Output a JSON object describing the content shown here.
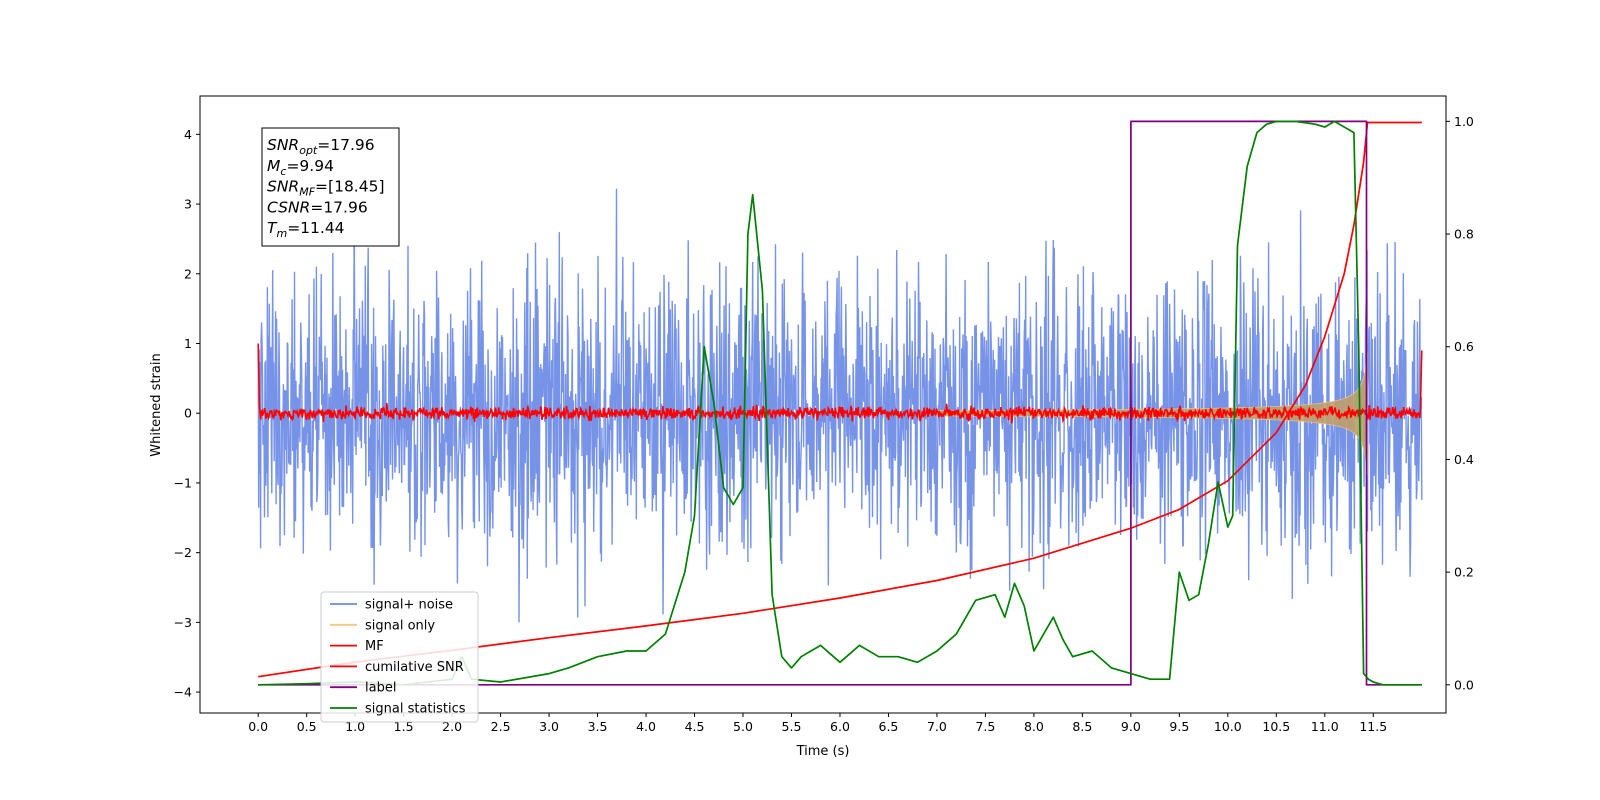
{
  "chart_data": {
    "type": "line",
    "title": "",
    "xlabel": "Time (s)",
    "ylabel": "Whitened strain",
    "y2label": "",
    "xlim": [
      -0.6,
      12.25
    ],
    "ylim": [
      -4.3,
      4.55
    ],
    "y2lim": [
      -0.05,
      1.045
    ],
    "xticks": [
      "0.0",
      "0.5",
      "1.0",
      "1.5",
      "2.0",
      "2.5",
      "3.0",
      "3.5",
      "4.0",
      "4.5",
      "5.0",
      "5.5",
      "6.0",
      "6.5",
      "7.0",
      "7.5",
      "8.0",
      "8.5",
      "9.0",
      "9.5",
      "10.0",
      "10.5",
      "11.0",
      "11.5"
    ],
    "yticks": [
      "−4",
      "−3",
      "−2",
      "−1",
      "0",
      "1",
      "2",
      "3",
      "4"
    ],
    "y2ticks": [
      "0.0",
      "0.2",
      "0.4",
      "0.6",
      "0.8",
      "1.0"
    ],
    "grid": false,
    "legend_position": "lower-left",
    "series": [
      {
        "name": "signal+ noise",
        "axis": "left",
        "color": "#6a8ae6",
        "kind": "noise",
        "sigma": 1.0,
        "x_range": [
          0,
          12.0
        ]
      },
      {
        "name": "signal only",
        "axis": "left",
        "color": "#f5c77e",
        "kind": "chirp",
        "t_merge": 11.44,
        "amp_peak": 1.5
      },
      {
        "name": "MF",
        "axis": "left",
        "color": "#ff0000",
        "kind": "mf_noise",
        "sigma": 0.045
      },
      {
        "name": "cumilative SNR",
        "axis": "left",
        "color": "#ff0000",
        "kind": "curve",
        "x": [
          0.0,
          1.0,
          2.0,
          3.0,
          4.0,
          5.0,
          6.0,
          7.0,
          8.0,
          9.0,
          9.5,
          10.0,
          10.5,
          10.8,
          11.0,
          11.2,
          11.3,
          11.4,
          11.44,
          12.0
        ],
        "y": [
          -3.78,
          -3.57,
          -3.4,
          -3.22,
          -3.05,
          -2.87,
          -2.65,
          -2.4,
          -2.08,
          -1.65,
          -1.38,
          -0.97,
          -0.28,
          0.4,
          1.1,
          2.0,
          2.7,
          3.6,
          4.17,
          4.17
        ]
      },
      {
        "name": "label",
        "axis": "right",
        "color": "#800080",
        "kind": "step",
        "x": [
          0.0,
          9.0,
          9.0,
          11.43,
          11.43,
          12.0
        ],
        "y": [
          0,
          0,
          1,
          1,
          0,
          0
        ]
      },
      {
        "name": "signal statistics",
        "axis": "right",
        "color": "#008000",
        "kind": "curve",
        "x": [
          0.0,
          0.5,
          1.0,
          1.5,
          2.0,
          2.1,
          2.2,
          2.5,
          3.0,
          3.2,
          3.5,
          3.8,
          4.0,
          4.2,
          4.4,
          4.5,
          4.6,
          4.7,
          4.8,
          4.9,
          5.0,
          5.05,
          5.1,
          5.2,
          5.3,
          5.4,
          5.5,
          5.6,
          5.7,
          5.8,
          6.0,
          6.2,
          6.4,
          6.6,
          6.8,
          7.0,
          7.2,
          7.4,
          7.6,
          7.7,
          7.8,
          7.9,
          8.0,
          8.2,
          8.3,
          8.4,
          8.6,
          8.8,
          9.0,
          9.2,
          9.4,
          9.5,
          9.6,
          9.7,
          9.8,
          9.9,
          10.0,
          10.05,
          10.1,
          10.2,
          10.3,
          10.4,
          10.5,
          10.7,
          10.9,
          11.0,
          11.1,
          11.2,
          11.3,
          11.35,
          11.4,
          11.45,
          11.5,
          11.6,
          12.0
        ],
        "y": [
          0.0,
          0.002,
          0.005,
          0.0,
          0.01,
          0.05,
          0.01,
          0.005,
          0.02,
          0.03,
          0.05,
          0.06,
          0.06,
          0.09,
          0.2,
          0.3,
          0.6,
          0.5,
          0.35,
          0.32,
          0.35,
          0.8,
          0.87,
          0.7,
          0.16,
          0.05,
          0.03,
          0.05,
          0.06,
          0.07,
          0.04,
          0.07,
          0.05,
          0.05,
          0.04,
          0.06,
          0.09,
          0.15,
          0.16,
          0.12,
          0.18,
          0.14,
          0.06,
          0.12,
          0.08,
          0.05,
          0.06,
          0.03,
          0.02,
          0.01,
          0.01,
          0.2,
          0.15,
          0.16,
          0.25,
          0.36,
          0.28,
          0.3,
          0.78,
          0.92,
          0.98,
          0.995,
          1.0,
          1.0,
          0.995,
          0.99,
          1.0,
          0.99,
          0.98,
          0.6,
          0.02,
          0.01,
          0.005,
          0.0,
          0.0
        ]
      }
    ]
  },
  "annotation": {
    "lines": [
      {
        "sym": "SNR",
        "sub": "opt",
        "value": "=17.96"
      },
      {
        "sym": "M",
        "sub": "c",
        "value": "=9.94"
      },
      {
        "sym": "SNR",
        "sub": "MF",
        "value": "=[18.45]"
      },
      {
        "sym": "CSNR",
        "sub": "",
        "value": "=17.96"
      },
      {
        "sym": "T",
        "sub": "m",
        "value": "=11.44"
      }
    ]
  }
}
